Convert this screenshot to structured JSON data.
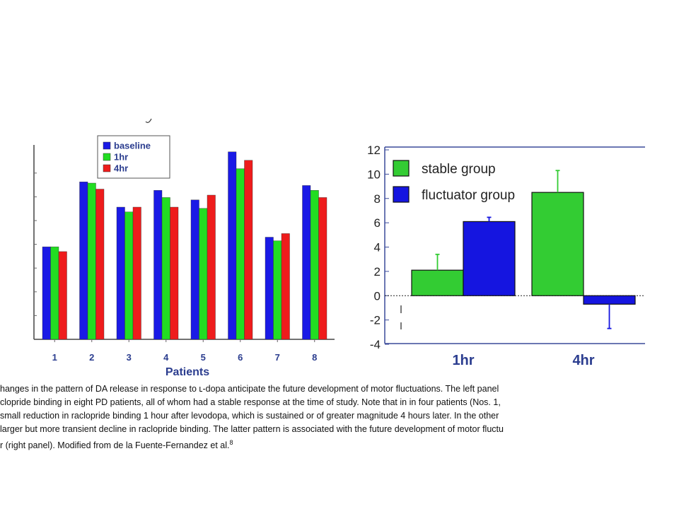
{
  "charts": {
    "left": {
      "chart_data": {
        "type": "bar",
        "xlabel": "Patients",
        "ylabel": "",
        "categories": [
          "1",
          "2",
          "3",
          "4",
          "5",
          "6",
          "7",
          "8"
        ],
        "series": [
          {
            "name": "baseline",
            "color": "#1a1ae6",
            "values": [
              3.85,
              6.55,
              5.5,
              6.2,
              5.8,
              7.8,
              4.25,
              6.4
            ]
          },
          {
            "name": "1hr",
            "color": "#22dd22",
            "values": [
              3.85,
              6.5,
              5.3,
              5.9,
              5.45,
              7.1,
              4.1,
              6.2
            ]
          },
          {
            "name": "4hr",
            "color": "#ee1c1c",
            "values": [
              3.65,
              6.25,
              5.5,
              5.5,
              6.0,
              7.45,
              4.4,
              5.9
            ]
          }
        ],
        "ylim": [
          0,
          10
        ],
        "y_tick_labels_visible": false,
        "grid": false,
        "legend_position": "top-center"
      }
    },
    "right": {
      "chart_data": {
        "type": "bar",
        "categories": [
          "1hr",
          "4hr"
        ],
        "series": [
          {
            "name": "stable group",
            "color": "#33cc33",
            "values": [
              2.1,
              8.5
            ],
            "error": [
              1.3,
              1.8
            ]
          },
          {
            "name": "fluctuator group",
            "color": "#1515e0",
            "values": [
              6.1,
              -0.7
            ],
            "error": [
              0.35,
              2.0
            ]
          }
        ],
        "yticks": [
          "12",
          "10",
          "8",
          "6",
          "4",
          "2",
          "0",
          "-2",
          "-4"
        ],
        "ylim": [
          -4,
          12
        ],
        "zero_line": "dotted",
        "grid": false,
        "legend_position": "top-left"
      }
    }
  },
  "caption": {
    "line1": "hanges in the pattern of DA release in response to ʟ-dopa anticipate the future development of motor fluctuations. The left panel",
    "line2": "clopride binding in eight PD patients, all of whom had a stable response at the time of study. Note that in in four patients (Nos. 1,",
    "line3": " small reduction in raclopride binding 1 hour after levodopa, which is sustained or of greater magnitude 4 hours later. In the other",
    "line4": " larger but more transient decline in raclopride binding. The latter pattern is associated with the future development of motor fluctu",
    "line5": "r (right panel). Modified from de la Fuente-Fernandez et al.",
    "line5_ref": "8"
  }
}
